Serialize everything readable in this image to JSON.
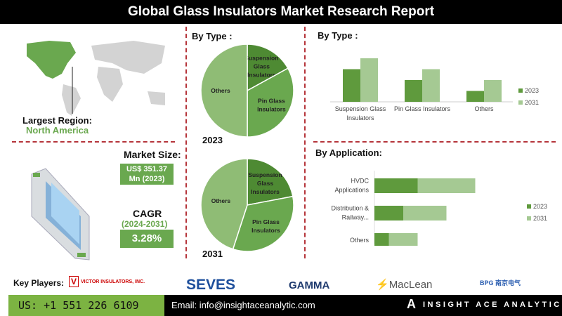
{
  "title": "Global Glass Insulators Market Research Report",
  "region": {
    "label": "Largest Region:",
    "value": "North America"
  },
  "market_size": {
    "label": "Market Size:",
    "value_line1": "US$ 351.37",
    "value_line2": "Mn (2023)"
  },
  "cagr": {
    "label": "CAGR",
    "period": "(2024-2031)",
    "value": "3.28%"
  },
  "key_players": {
    "label": "Key Players:",
    "logos": [
      "VICTOR INSULATORS, INC.",
      "SEVES",
      "GAMMA",
      "MacLean",
      "BPG 南京电气"
    ]
  },
  "footer": {
    "phone": "US: +1 551 226 6109",
    "email": "Email: info@insightaceanalytic.com",
    "brand": "INSIGHT ACE ANALYTIC"
  },
  "colors": {
    "dark": "#5f9a3d",
    "light": "#a5c993",
    "mid": "#6aa84f",
    "pie_others": "#8fbc75",
    "pie_pin": "#6aa84f",
    "pie_susp": "#4e8a33",
    "divider": "#b5343a"
  },
  "chart_data": [
    {
      "type": "pie",
      "title": "By Type :",
      "year_label": "2023",
      "slices": [
        {
          "label": "Suspension Glass Insulators",
          "value": 17
        },
        {
          "label": "Pin Glass Insulators",
          "value": 33
        },
        {
          "label": "Others",
          "value": 50
        }
      ]
    },
    {
      "type": "pie",
      "title": "",
      "year_label": "2031",
      "slices": [
        {
          "label": "Suspension Glass Insulators",
          "value": 22
        },
        {
          "label": "Pin Glass Insulators",
          "value": 33
        },
        {
          "label": "Others",
          "value": 45
        }
      ]
    },
    {
      "type": "bar",
      "title": "By Type :",
      "categories": [
        "Suspension Glass Insulators",
        "Pin Glass Insulators",
        "Others"
      ],
      "series": [
        {
          "name": "2023",
          "values": [
            3,
            2,
            1
          ]
        },
        {
          "name": "2031",
          "values": [
            4,
            3,
            2
          ]
        }
      ],
      "ylim": [
        0,
        4.5
      ],
      "legend": "right"
    },
    {
      "type": "bar",
      "orientation": "horizontal-stacked",
      "title": "By Application:",
      "categories": [
        "HVDC Applications",
        "Distribution & Railway...",
        "Others"
      ],
      "series": [
        {
          "name": "2023",
          "values": [
            3,
            2,
            1
          ]
        },
        {
          "name": "2031",
          "values": [
            4,
            3,
            2
          ]
        }
      ],
      "legend": "right"
    }
  ]
}
